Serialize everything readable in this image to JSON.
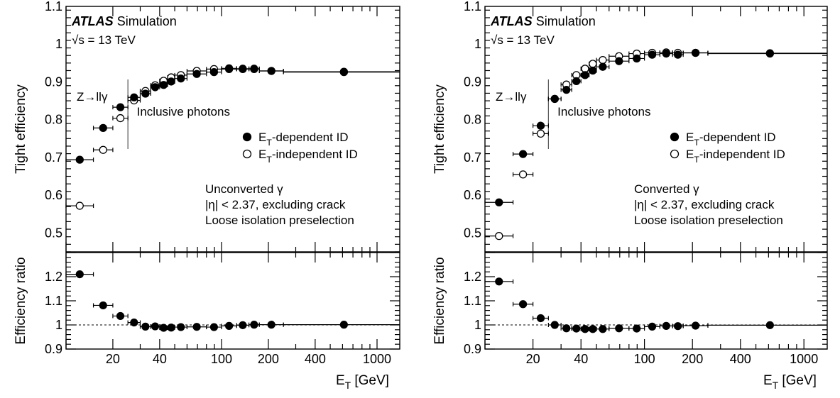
{
  "chart_data": [
    {
      "type": "scatter",
      "panel_title": "ATLAS",
      "panel_subtitle": "Simulation",
      "energy_label": "√s = 13 TeV",
      "region_left": "Z→llγ",
      "region_right": "Inclusive photons",
      "info_lines": [
        "Unconverted γ",
        "|η| < 2.37, excluding crack",
        "Loose isolation preselection"
      ],
      "xlabel": "E",
      "xlabel_sub": "T",
      "xlabel_unit": " [GeV]",
      "ylabel": "Tight efficiency",
      "ratio_ylabel": "Efficiency ratio",
      "x_scale": "log",
      "xlim": [
        10,
        1400
      ],
      "ylim": [
        0.45,
        1.1
      ],
      "ratio_ylim": [
        0.9,
        1.3
      ],
      "x_ticks": [
        20,
        40,
        100,
        200,
        400,
        1000
      ],
      "y_ticks": [
        0.5,
        0.6,
        0.7,
        0.8,
        0.9,
        1,
        1.1
      ],
      "ratio_y_ticks": [
        0.9,
        1,
        1.1,
        1.2
      ],
      "legend_position": "right",
      "x_boundary": 25,
      "x_lo": [
        10,
        15,
        20,
        25,
        30,
        35,
        40,
        45,
        50,
        60,
        80,
        100,
        125,
        150,
        175,
        250
      ],
      "x_hi": [
        15,
        20,
        25,
        30,
        35,
        40,
        45,
        50,
        60,
        80,
        100,
        125,
        150,
        175,
        250,
        1500
      ],
      "series": [
        {
          "name": "E",
          "name_sub": "T",
          "name_rest": "-dependent ID",
          "marker": "filled",
          "values": [
            0.694,
            0.778,
            0.833,
            0.859,
            0.869,
            0.886,
            0.892,
            0.901,
            0.909,
            0.921,
            0.926,
            0.934,
            0.934,
            0.935,
            0.929,
            0.927
          ]
        },
        {
          "name": "E",
          "name_sub": "T",
          "name_rest": "-independent ID",
          "marker": "open",
          "values": [
            0.572,
            0.72,
            0.804,
            0.851,
            0.876,
            0.891,
            0.903,
            0.912,
            0.918,
            0.929,
            0.934,
            0.936,
            0.935,
            0.934,
            0.929,
            0.926
          ]
        }
      ],
      "ratio": [
        1.21,
        1.081,
        1.037,
        1.01,
        0.993,
        0.994,
        0.988,
        0.989,
        0.991,
        0.992,
        0.991,
        0.996,
        0.999,
        1.001,
        1.001,
        1.001
      ]
    },
    {
      "type": "scatter",
      "panel_title": "ATLAS",
      "panel_subtitle": "Simulation",
      "energy_label": "√s = 13 TeV",
      "region_left": "Z→llγ",
      "region_right": "Inclusive photons",
      "info_lines": [
        "Converted γ",
        "|η| < 2.37, excluding crack",
        "Loose isolation preselection"
      ],
      "xlabel": "E",
      "xlabel_sub": "T",
      "xlabel_unit": " [GeV]",
      "ylabel": "Tight efficiency",
      "ratio_ylabel": "Efficiency ratio",
      "x_scale": "log",
      "xlim": [
        10,
        1400
      ],
      "ylim": [
        0.45,
        1.1
      ],
      "ratio_ylim": [
        0.9,
        1.3
      ],
      "x_ticks": [
        20,
        40,
        100,
        200,
        400,
        1000
      ],
      "y_ticks": [
        0.5,
        0.6,
        0.7,
        0.8,
        0.9,
        1,
        1.1
      ],
      "ratio_y_ticks": [
        0.9,
        1,
        1.1,
        1.2
      ],
      "legend_position": "right",
      "x_boundary": 25,
      "x_lo": [
        10,
        15,
        20,
        25,
        30,
        35,
        40,
        45,
        50,
        60,
        80,
        100,
        125,
        150,
        175,
        250
      ],
      "x_hi": [
        15,
        20,
        25,
        30,
        35,
        40,
        45,
        50,
        60,
        80,
        100,
        125,
        150,
        175,
        250,
        1500
      ],
      "series": [
        {
          "name": "E",
          "name_sub": "T",
          "name_rest": "-dependent ID",
          "marker": "filled",
          "values": [
            0.581,
            0.709,
            0.784,
            0.855,
            0.879,
            0.902,
            0.918,
            0.93,
            0.94,
            0.955,
            0.962,
            0.972,
            0.975,
            0.972,
            0.977,
            0.975
          ]
        },
        {
          "name": "E",
          "name_sub": "T",
          "name_rest": "-independent ID",
          "marker": "open",
          "values": [
            0.492,
            0.655,
            0.763,
            0.855,
            0.893,
            0.918,
            0.935,
            0.948,
            0.958,
            0.968,
            0.975,
            0.977,
            0.978,
            0.977,
            0.977,
            0.976
          ]
        }
      ],
      "ratio": [
        1.18,
        1.086,
        1.028,
        1.0,
        0.986,
        0.985,
        0.983,
        0.983,
        0.983,
        0.986,
        0.985,
        0.993,
        0.996,
        0.995,
        0.997,
        0.999
      ]
    }
  ]
}
